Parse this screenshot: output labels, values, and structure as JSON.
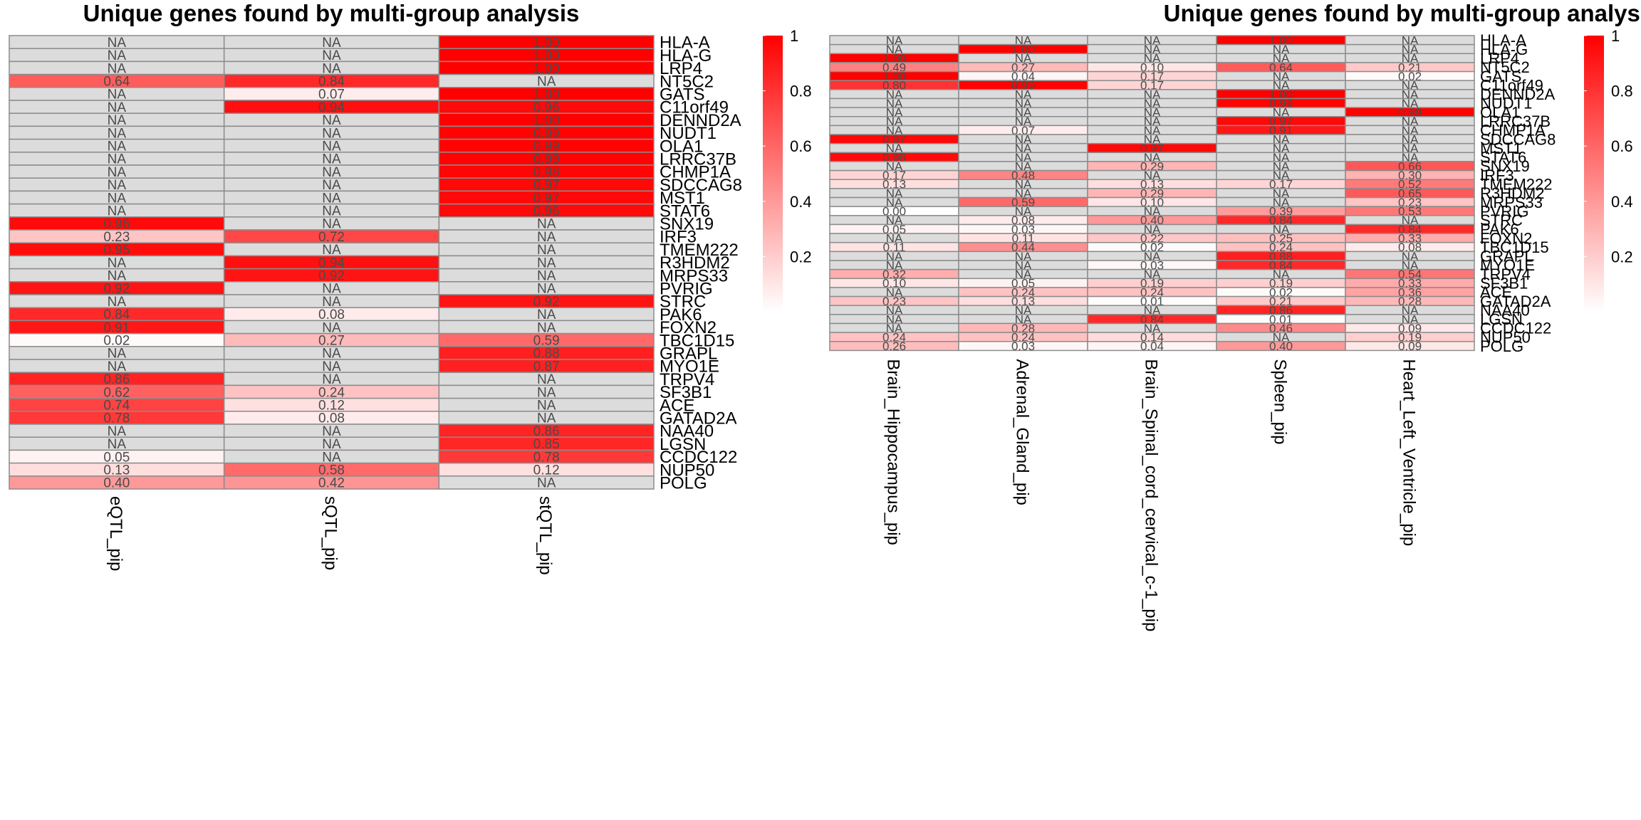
{
  "chart_data": [
    {
      "type": "heatmap",
      "title": "Unique genes found by multi-group analysis",
      "columns": [
        "eQTL_pip",
        "sQTL_pip",
        "stQTL_pip"
      ],
      "rows": [
        "HLA-A",
        "HLA-G",
        "LRP4",
        "NT5C2",
        "GATS",
        "C11orf49",
        "DENND2A",
        "NUDT1",
        "OLA1",
        "LRRC37B",
        "CHMP1A",
        "SDCCAG8",
        "MST1",
        "STAT6",
        "SNX19",
        "IRF3",
        "TMEM222",
        "R3HDM2",
        "MRPS33",
        "PVRIG",
        "STRC",
        "PAK6",
        "FOXN2",
        "TBC1D15",
        "GRAPL",
        "MYO1E",
        "TRPV4",
        "SF3B1",
        "ACE",
        "GATAD2A",
        "NAA40",
        "LGSN",
        "CCDC122",
        "NUP50",
        "POLG"
      ],
      "values": [
        [
          null,
          null,
          1.0
        ],
        [
          null,
          null,
          1.0
        ],
        [
          null,
          null,
          1.0
        ],
        [
          0.64,
          0.84,
          null
        ],
        [
          null,
          0.07,
          1.0
        ],
        [
          null,
          0.94,
          0.96
        ],
        [
          null,
          null,
          1.0
        ],
        [
          null,
          null,
          0.99
        ],
        [
          null,
          null,
          0.99
        ],
        [
          null,
          null,
          0.99
        ],
        [
          null,
          null,
          0.98
        ],
        [
          null,
          null,
          0.97
        ],
        [
          null,
          null,
          0.97
        ],
        [
          null,
          null,
          0.96
        ],
        [
          0.96,
          null,
          null
        ],
        [
          0.23,
          0.72,
          null
        ],
        [
          0.95,
          null,
          null
        ],
        [
          null,
          0.94,
          null
        ],
        [
          null,
          0.92,
          null
        ],
        [
          0.92,
          null,
          null
        ],
        [
          null,
          null,
          0.92
        ],
        [
          0.84,
          0.08,
          null
        ],
        [
          0.91,
          null,
          null
        ],
        [
          0.02,
          0.27,
          0.59
        ],
        [
          null,
          null,
          0.88
        ],
        [
          null,
          null,
          0.87
        ],
        [
          0.86,
          null,
          null
        ],
        [
          0.62,
          0.24,
          null
        ],
        [
          0.74,
          0.12,
          null
        ],
        [
          0.78,
          0.08,
          null
        ],
        [
          null,
          null,
          0.86
        ],
        [
          null,
          null,
          0.85
        ],
        [
          0.05,
          null,
          0.78
        ],
        [
          0.13,
          0.58,
          0.12
        ],
        [
          0.4,
          0.42,
          null
        ]
      ],
      "na_label": "NA",
      "color_scale": {
        "low": "#ffffff",
        "high": "#ff0000",
        "na": "#dcdcdc",
        "min": 0,
        "max": 1,
        "ticks": [
          0.2,
          0.4,
          0.6,
          0.8,
          1
        ]
      },
      "legend": "right"
    },
    {
      "type": "heatmap",
      "title": "Unique genes found by multi-group analysis",
      "columns": [
        "Brain_Hippocampus_pip",
        "Adrenal_Gland_pip",
        "Brain_Spinal_cord_cervical_c-1_pip",
        "Spleen_pip",
        "Heart_Left_Ventricle_pip"
      ],
      "rows": [
        "HLA-A",
        "HLA-G",
        "LRP4",
        "NT5C2",
        "GATS",
        "C11orf49",
        "DENND2A",
        "NUDT1",
        "OLA1",
        "LRRC37B",
        "CHMP1A",
        "SDCCAG8",
        "MST1",
        "STAT6",
        "SNX19",
        "IRF3",
        "TMEM222",
        "R3HDM2",
        "MRPS33",
        "PVRIG",
        "STRC",
        "PAK6",
        "FOXN2",
        "TBC1D15",
        "GRAPL",
        "MYO1E",
        "TRPV4",
        "SF3B1",
        "ACE",
        "GATAD2A",
        "NAA40",
        "LGSN",
        "CCDC122",
        "NUP50",
        "POLG"
      ],
      "values": [
        [
          null,
          null,
          null,
          1.0,
          null
        ],
        [
          null,
          1.0,
          null,
          null,
          null
        ],
        [
          1.0,
          null,
          null,
          null,
          null
        ],
        [
          0.49,
          0.27,
          0.1,
          0.64,
          0.21
        ],
        [
          1.0,
          0.04,
          0.17,
          null,
          0.02
        ],
        [
          0.8,
          0.99,
          0.17,
          null,
          null
        ],
        [
          null,
          null,
          null,
          1.0,
          null
        ],
        [
          null,
          null,
          null,
          0.99,
          null
        ],
        [
          null,
          null,
          null,
          null,
          0.99
        ],
        [
          null,
          null,
          null,
          0.97,
          null
        ],
        [
          null,
          0.07,
          null,
          0.91,
          null
        ],
        [
          0.97,
          null,
          null,
          null,
          null
        ],
        [
          null,
          null,
          0.97,
          null,
          null
        ],
        [
          0.96,
          null,
          null,
          null,
          null
        ],
        [
          null,
          null,
          0.29,
          null,
          0.66
        ],
        [
          0.17,
          0.48,
          null,
          null,
          0.3
        ],
        [
          0.13,
          null,
          0.13,
          0.17,
          0.52
        ],
        [
          null,
          null,
          0.29,
          null,
          0.65
        ],
        [
          null,
          0.59,
          0.1,
          null,
          0.23
        ],
        [
          0.0,
          null,
          null,
          0.39,
          0.53
        ],
        [
          null,
          0.08,
          0.4,
          0.84,
          null
        ],
        [
          0.05,
          0.03,
          null,
          null,
          0.84
        ],
        [
          null,
          0.11,
          0.22,
          0.25,
          0.33
        ],
        [
          0.11,
          0.44,
          0.02,
          0.24,
          0.08
        ],
        [
          null,
          null,
          null,
          0.88,
          null
        ],
        [
          null,
          null,
          0.03,
          0.84,
          null
        ],
        [
          0.32,
          null,
          null,
          null,
          0.54
        ],
        [
          0.1,
          0.05,
          0.19,
          0.19,
          0.33
        ],
        [
          null,
          0.24,
          0.24,
          0.02,
          0.36
        ],
        [
          0.23,
          0.13,
          0.01,
          0.21,
          0.28
        ],
        [
          null,
          null,
          null,
          0.86,
          null
        ],
        [
          null,
          null,
          0.84,
          0.01,
          null
        ],
        [
          null,
          0.28,
          null,
          0.46,
          0.09
        ],
        [
          0.24,
          0.24,
          0.14,
          null,
          0.19
        ],
        [
          0.26,
          0.03,
          0.04,
          0.4,
          0.09
        ]
      ],
      "na_label": "NA",
      "color_scale": {
        "low": "#ffffff",
        "high": "#ff0000",
        "na": "#dcdcdc",
        "min": 0,
        "max": 1,
        "ticks": [
          0.2,
          0.4,
          0.6,
          0.8,
          1
        ]
      },
      "legend": "right"
    }
  ]
}
